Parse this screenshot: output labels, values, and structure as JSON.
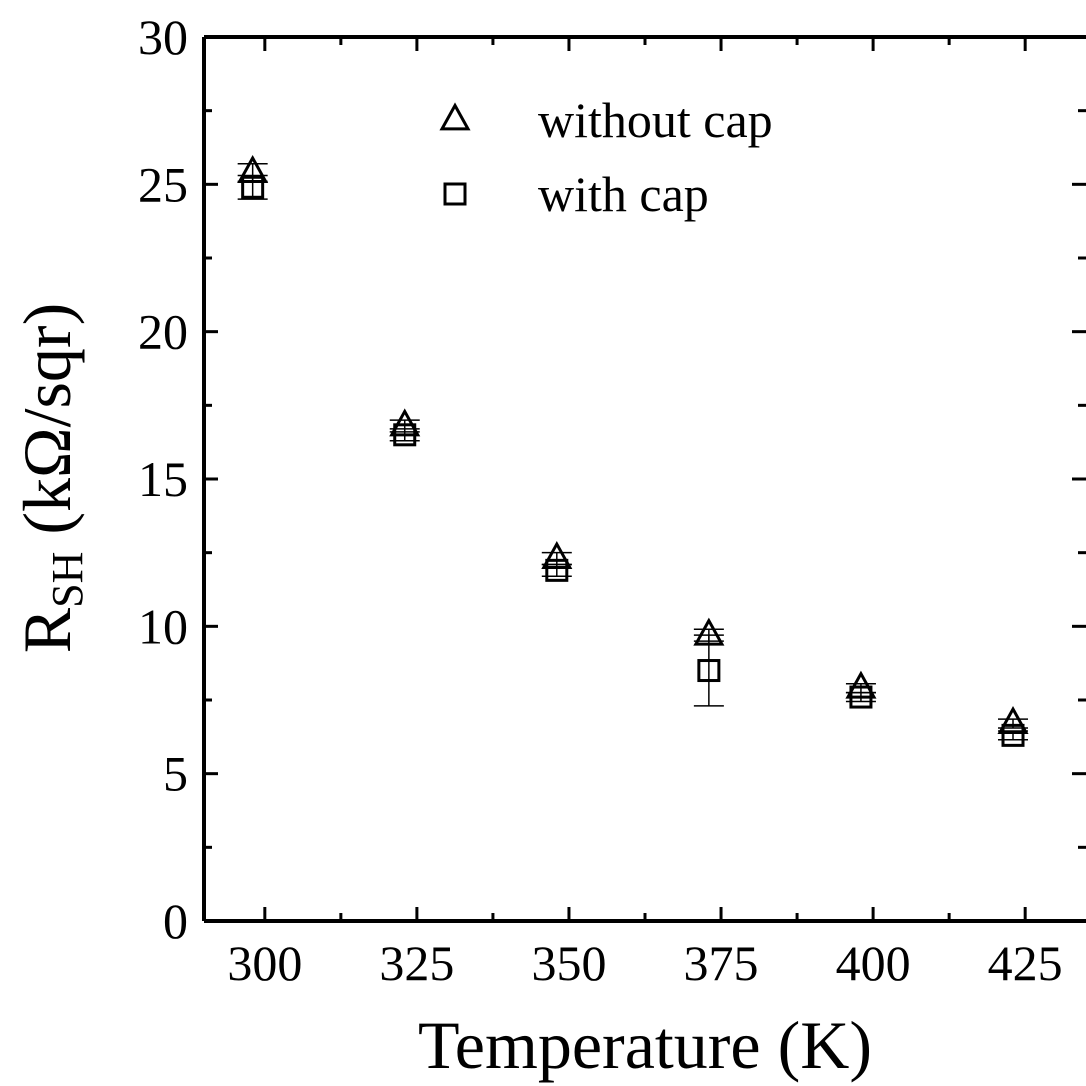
{
  "chart_data": {
    "type": "scatter",
    "title": "",
    "xlabel": "Temperature (K)",
    "ylabel": {
      "main": "R",
      "subscript": "SH",
      "units": " (kΩ/sqr)"
    },
    "xlim": [
      290,
      435
    ],
    "ylim": [
      0,
      30
    ],
    "x_ticks": [
      300,
      325,
      350,
      375,
      400,
      425
    ],
    "y_ticks": [
      0,
      5,
      10,
      15,
      20,
      25,
      30
    ],
    "grid": false,
    "legend_position": "top-center",
    "series": [
      {
        "name": "without cap",
        "marker": "triangle",
        "points": [
          {
            "x": 298,
            "y": 25.4,
            "err": 0.3
          },
          {
            "x": 323,
            "y": 16.8,
            "err": 0.2
          },
          {
            "x": 348,
            "y": 12.3,
            "err": 0.2
          },
          {
            "x": 373,
            "y": 9.7,
            "err": 0.2
          },
          {
            "x": 398,
            "y": 7.9,
            "err": 0.15
          },
          {
            "x": 423,
            "y": 6.7,
            "err": 0.15
          }
        ]
      },
      {
        "name": "with cap",
        "marker": "square",
        "points": [
          {
            "x": 298,
            "y": 24.9,
            "err": 0.4
          },
          {
            "x": 323,
            "y": 16.5,
            "err": 0.2
          },
          {
            "x": 348,
            "y": 11.9,
            "err": 0.2
          },
          {
            "x": 373,
            "y": 8.5,
            "err": 1.2
          },
          {
            "x": 398,
            "y": 7.6,
            "err": 0.15
          },
          {
            "x": 423,
            "y": 6.3,
            "err": 0.15
          }
        ]
      }
    ]
  }
}
